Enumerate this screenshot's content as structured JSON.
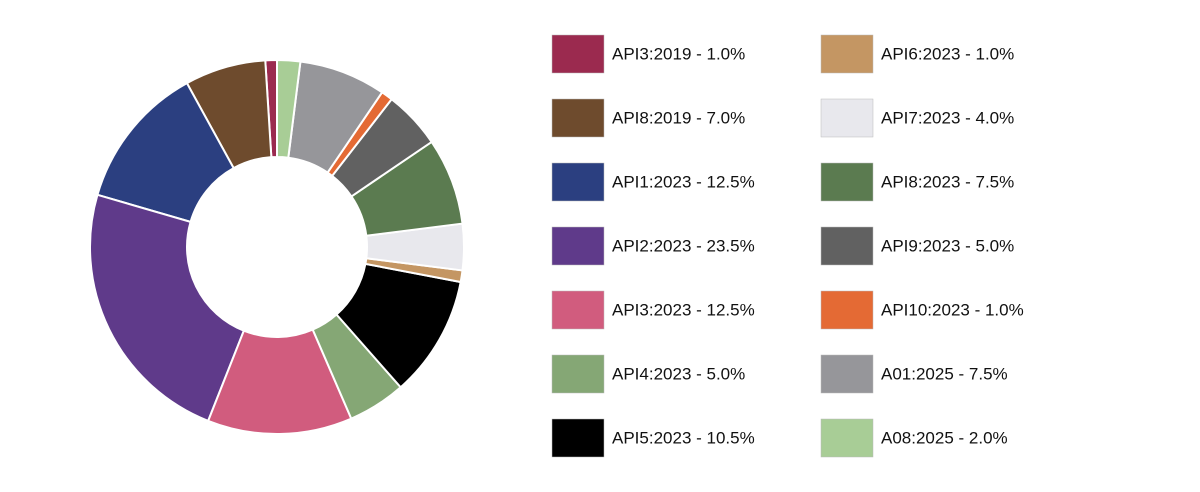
{
  "chart_data": {
    "type": "pie",
    "categories": [
      "API3:2019 - 1.0%",
      "API8:2019 - 7.0%",
      "API1:2023 - 12.5%",
      "API2:2023 - 23.5%",
      "API3:2023 - 12.5%",
      "API4:2023 - 5.0%",
      "API5:2023 - 10.5%",
      "API6:2023 - 1.0%",
      "API7:2023 - 4.0%",
      "API8:2023 - 7.5%",
      "API9:2023 - 5.0%",
      "API10:2023 - 1.0%",
      "A01:2025 - 7.5%",
      "A08:2025 - 2.0%"
    ],
    "values": [
      1.0,
      7.0,
      12.5,
      23.5,
      12.5,
      5.0,
      10.5,
      1.0,
      4.0,
      7.5,
      5.0,
      1.0,
      7.5,
      2.0
    ],
    "colors": [
      "#9b2a4f",
      "#6e4b2d",
      "#2b3f80",
      "#5f3a8a",
      "#d15c7e",
      "#85a775",
      "#000000",
      "#c49663",
      "#e8e8ed",
      "#5b7b50",
      "#616161",
      "#e46a34",
      "#96969a",
      "#a8cd96"
    ]
  }
}
